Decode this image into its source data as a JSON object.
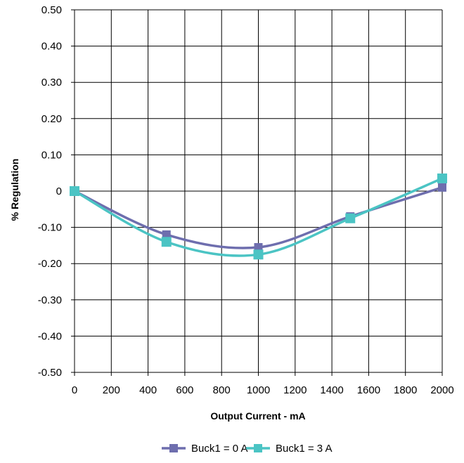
{
  "chart_data": {
    "type": "line",
    "title": "",
    "xlabel": "Output Current - mA",
    "ylabel": "% Regulation",
    "xlim": [
      0,
      2000
    ],
    "ylim": [
      -0.5,
      0.5
    ],
    "x_ticks": [
      0,
      200,
      400,
      600,
      800,
      1000,
      1200,
      1400,
      1600,
      1800,
      2000
    ],
    "x_tick_labels": [
      "0",
      "200",
      "400",
      "600",
      "800",
      "1000",
      "1200",
      "1400",
      "1600",
      "1800",
      "2000"
    ],
    "y_ticks": [
      0.5,
      0.4,
      0.3,
      0.2,
      0.1,
      0,
      -0.1,
      -0.2,
      -0.3,
      -0.4,
      -0.5
    ],
    "y_tick_labels": [
      "0.50",
      "0.40",
      "0.30",
      "0.20",
      "0.10",
      "0",
      "-0.10",
      "-0.20",
      "-0.30",
      "-0.40",
      "-0.50"
    ],
    "grid": true,
    "smooth": true,
    "legend_position": "bottom",
    "series": [
      {
        "name": "Buck1 = 0 A",
        "color": "#6E6EAE",
        "marker": "square",
        "x": [
          0,
          500,
          1000,
          1500,
          2000
        ],
        "y": [
          0,
          -0.12,
          -0.155,
          -0.07,
          0.01
        ]
      },
      {
        "name": "Buck1 = 3 A",
        "color": "#4BC4C4",
        "marker": "square",
        "x": [
          0,
          500,
          1000,
          1500,
          2000
        ],
        "y": [
          0,
          -0.14,
          -0.175,
          -0.075,
          0.035
        ]
      }
    ]
  }
}
